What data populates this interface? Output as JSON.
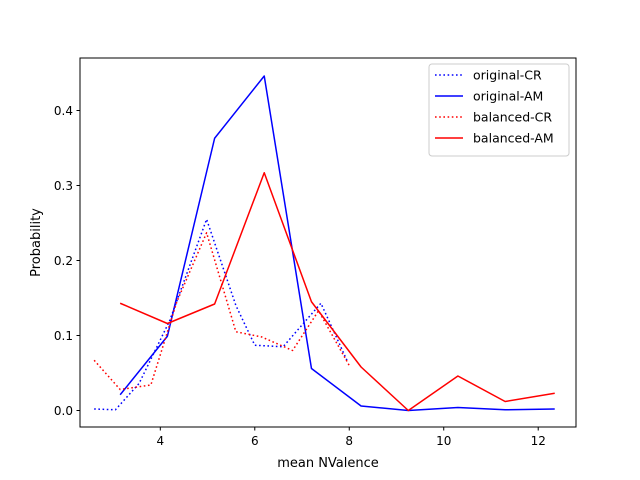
{
  "chart_data": {
    "type": "line",
    "title": "",
    "xlabel": "mean NValence",
    "ylabel": "Probability",
    "xlim": [
      2.3,
      12.8
    ],
    "ylim": [
      -0.022,
      0.47
    ],
    "xticks": [
      4,
      6,
      8,
      10,
      12
    ],
    "yticks": [
      0.0,
      0.1,
      0.2,
      0.3,
      0.4
    ],
    "ytick_labels": [
      "0.0",
      "0.1",
      "0.2",
      "0.3",
      "0.4"
    ],
    "grid": false,
    "legend_position": "top-right",
    "series": [
      {
        "name": "original-CR",
        "color": "#0000ff",
        "style": "dotted",
        "x": [
          2.6,
          3.05,
          3.55,
          4.2,
          4.98,
          5.6,
          6.0,
          6.6,
          7.4,
          7.95
        ],
        "y": [
          0.002,
          0.001,
          0.036,
          0.12,
          0.255,
          0.14,
          0.087,
          0.085,
          0.143,
          0.067
        ]
      },
      {
        "name": "original-AM",
        "color": "#0000ff",
        "style": "solid",
        "x": [
          3.15,
          4.15,
          5.15,
          6.2,
          7.2,
          8.25,
          9.25,
          10.3,
          11.3,
          12.35
        ],
        "y": [
          0.021,
          0.099,
          0.363,
          0.446,
          0.056,
          0.006,
          0.0,
          0.004,
          0.001,
          0.002
        ]
      },
      {
        "name": "balanced-CR",
        "color": "#ff0000",
        "style": "dotted",
        "x": [
          2.6,
          3.15,
          3.8,
          4.35,
          4.98,
          5.6,
          6.15,
          6.8,
          7.35,
          8.0
        ],
        "y": [
          0.067,
          0.028,
          0.034,
          0.145,
          0.237,
          0.105,
          0.098,
          0.08,
          0.133,
          0.06
        ]
      },
      {
        "name": "balanced-AM",
        "color": "#ff0000",
        "style": "solid",
        "x": [
          3.15,
          4.15,
          5.15,
          6.2,
          7.2,
          8.25,
          9.25,
          10.3,
          11.3,
          12.35
        ],
        "y": [
          0.143,
          0.116,
          0.142,
          0.317,
          0.145,
          0.058,
          0.0,
          0.046,
          0.012,
          0.023
        ]
      }
    ]
  }
}
